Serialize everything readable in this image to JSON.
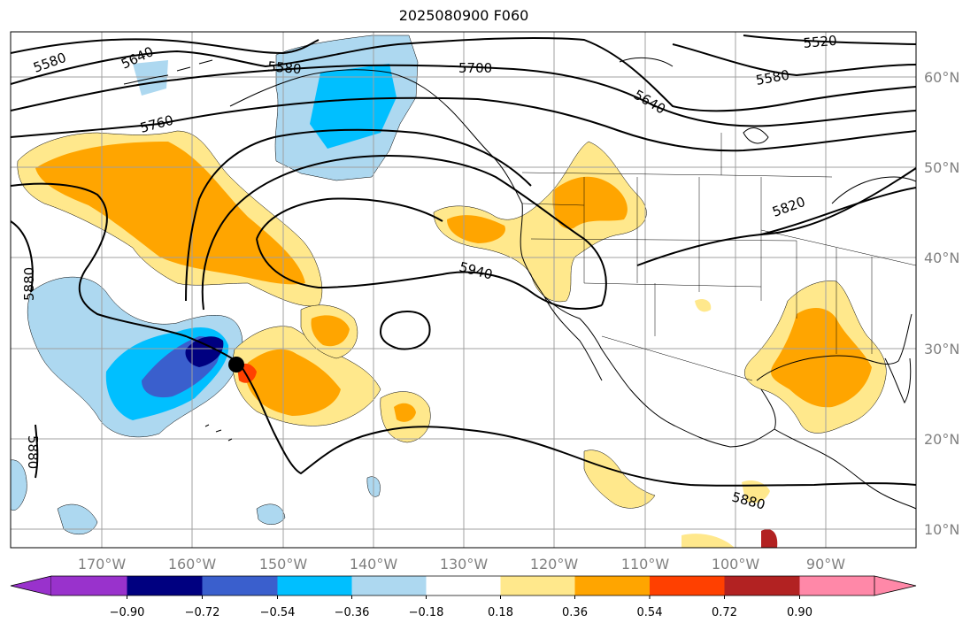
{
  "map": {
    "title": "2025080900 F060",
    "lon_ticks": [
      "170°W",
      "160°W",
      "150°W",
      "140°W",
      "130°W",
      "120°W",
      "110°W",
      "100°W",
      "90°W"
    ],
    "lat_ticks": [
      "60°N",
      "50°N",
      "40°N",
      "30°N",
      "20°N",
      "10°N"
    ],
    "contour_labels": [
      {
        "text": "5580",
        "name": "contour-label-5580-west"
      },
      {
        "text": "5640",
        "name": "contour-label-5640-west"
      },
      {
        "text": "5580",
        "name": "contour-label-5580-alaska"
      },
      {
        "text": "5700",
        "name": "contour-label-5700"
      },
      {
        "text": "5520",
        "name": "contour-label-5520"
      },
      {
        "text": "5580",
        "name": "contour-label-5580-east"
      },
      {
        "text": "5640",
        "name": "contour-label-5640-east"
      },
      {
        "text": "5760",
        "name": "contour-label-5760"
      },
      {
        "text": "5820",
        "name": "contour-label-5820"
      },
      {
        "text": "5940",
        "name": "contour-label-5940"
      },
      {
        "text": "5880",
        "name": "contour-label-5880-west"
      },
      {
        "text": "5880",
        "name": "contour-label-5880-southwest"
      },
      {
        "text": "5880",
        "name": "contour-label-5880-south"
      }
    ]
  },
  "colorbar": {
    "ticks": [
      "−0.90",
      "−0.72",
      "−0.54",
      "−0.36",
      "−0.18",
      "0.18",
      "0.36",
      "0.54",
      "0.72",
      "0.90"
    ],
    "colors": [
      "#9932cc",
      "#000080",
      "#3a5fcd",
      "#00bfff",
      "#add8f0",
      "#ffffff",
      "#ffe88c",
      "#ffa500",
      "#ff4000",
      "#b22222",
      "#ff88a8"
    ]
  },
  "colors": {
    "land_line": "#000000",
    "grid": "#a0a0a0"
  }
}
